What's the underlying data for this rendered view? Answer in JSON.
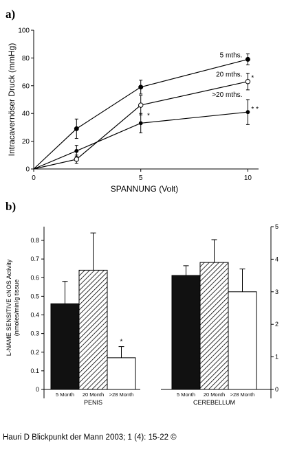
{
  "caption": "Hauri D Blickpunkt der Mann 2003; 1 (4): 15-22 ©",
  "chart_data": [
    {
      "panel": "a)",
      "type": "line",
      "xlabel": "SPANNUNG (Volt)",
      "ylabel": "Intracavernöser Druck (mmHg)",
      "xlim": [
        0,
        10.5
      ],
      "ylim": [
        0,
        100
      ],
      "xticks": [
        0,
        5,
        10
      ],
      "yticks": [
        0,
        20,
        40,
        60,
        80,
        100
      ],
      "grid": false,
      "series": [
        {
          "name": "5 mths.",
          "marker": "filled-circle",
          "label_mark": "",
          "x": [
            0,
            2,
            5,
            10
          ],
          "y": [
            0,
            29,
            59,
            79
          ],
          "err": [
            0,
            7,
            5,
            4
          ]
        },
        {
          "name": "20 mths.",
          "marker": "open-circle",
          "label_mark": "*",
          "x": [
            0,
            2,
            5,
            10
          ],
          "y": [
            0,
            7,
            46,
            63
          ],
          "err": [
            0,
            3,
            7,
            6
          ]
        },
        {
          "name": ">20 mths.",
          "marker": "small-filled-circle",
          "label_mark": "* *",
          "x": [
            0,
            2,
            5,
            10
          ],
          "y": [
            0,
            13,
            33,
            41
          ],
          "err": [
            0,
            4,
            7,
            9
          ]
        }
      ],
      "annotations": [
        {
          "text": "*",
          "x": 5.3,
          "y": 37
        }
      ]
    },
    {
      "panel": "b)",
      "type": "bar",
      "ylabel_line1": "L-NAME SENSITIVE cNOS Activity",
      "ylabel_line2": "(nmoles/min/g tissue",
      "left_ylim": [
        0,
        0.85
      ],
      "left_yticks": [
        "0",
        "0.1",
        "0.2",
        "0.3",
        "0.4",
        "0.5",
        "0.6",
        "0.7",
        "0.8"
      ],
      "right_ylim": [
        0,
        5
      ],
      "right_yticks": [
        "0",
        "1",
        "2",
        "3",
        "4",
        "5"
      ],
      "groups": [
        {
          "name": "PENIS",
          "axis": "left",
          "categories": [
            "5 Month",
            "20 Month",
            ">28 Month"
          ],
          "values": [
            0.46,
            0.64,
            0.17
          ],
          "errors": [
            0.12,
            0.2,
            0.06
          ],
          "marks": [
            "",
            "",
            "*"
          ]
        },
        {
          "name": "CEREBELLUM",
          "axis": "right",
          "categories": [
            "5 Month",
            "20 Month",
            ">28 Month"
          ],
          "values": [
            3.5,
            3.9,
            3.0
          ],
          "errors": [
            0.3,
            0.7,
            0.7
          ],
          "marks": [
            "",
            "",
            ""
          ]
        }
      ],
      "bar_styles": [
        "solid-black",
        "hatched",
        "white"
      ]
    }
  ]
}
